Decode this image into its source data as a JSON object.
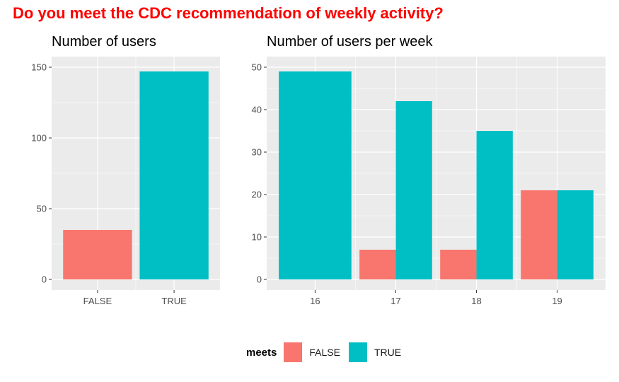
{
  "title": "Do you meet the CDC recommendation of weekly activity?",
  "colors": {
    "title": "#ff0000",
    "false": "#F8766D",
    "true": "#00BFC4",
    "panel": "#EBEBEB",
    "grid": "#ffffff"
  },
  "legend": {
    "title": "meets",
    "items": [
      {
        "label": "FALSE",
        "color": "#F8766D"
      },
      {
        "label": "TRUE",
        "color": "#00BFC4"
      }
    ]
  },
  "chart_data": [
    {
      "type": "bar",
      "title": "Number of users",
      "categories": [
        "FALSE",
        "TRUE"
      ],
      "values": [
        35,
        147
      ],
      "ylim": [
        0,
        150
      ],
      "yticks": [
        0,
        50,
        100,
        150
      ],
      "xlabel": "",
      "ylabel": "",
      "grid": true
    },
    {
      "type": "bar",
      "title": "Number of users per week",
      "categories": [
        "16",
        "17",
        "18",
        "19"
      ],
      "series": [
        {
          "name": "FALSE",
          "values": [
            0,
            7,
            7,
            21
          ]
        },
        {
          "name": "TRUE",
          "values": [
            49,
            42,
            35,
            21
          ]
        }
      ],
      "ylim": [
        0,
        50
      ],
      "yticks": [
        0,
        10,
        20,
        30,
        40,
        50
      ],
      "xlabel": "",
      "ylabel": "",
      "grid": true
    }
  ]
}
